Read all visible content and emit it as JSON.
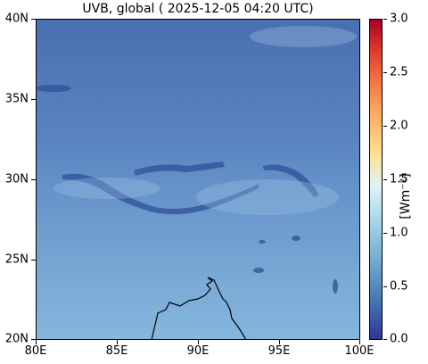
{
  "title": "UVB, global ( 2025-12-05 04:20 UTC)",
  "map": {
    "lon_range": [
      80,
      100
    ],
    "lat_range": [
      20,
      40
    ],
    "colormap": "RdYlBu_r",
    "x_ticks": [
      "80E",
      "85E",
      "90E",
      "95E",
      "100E"
    ],
    "y_ticks": [
      "20N",
      "25N",
      "30N",
      "35N",
      "40N"
    ]
  },
  "colorbar": {
    "label": "[Wm⁻²]",
    "range": [
      0.0,
      3.0
    ],
    "ticks": [
      "0.0",
      "0.5",
      "1.0",
      "1.5",
      "2.0",
      "2.5",
      "3.0"
    ]
  }
}
